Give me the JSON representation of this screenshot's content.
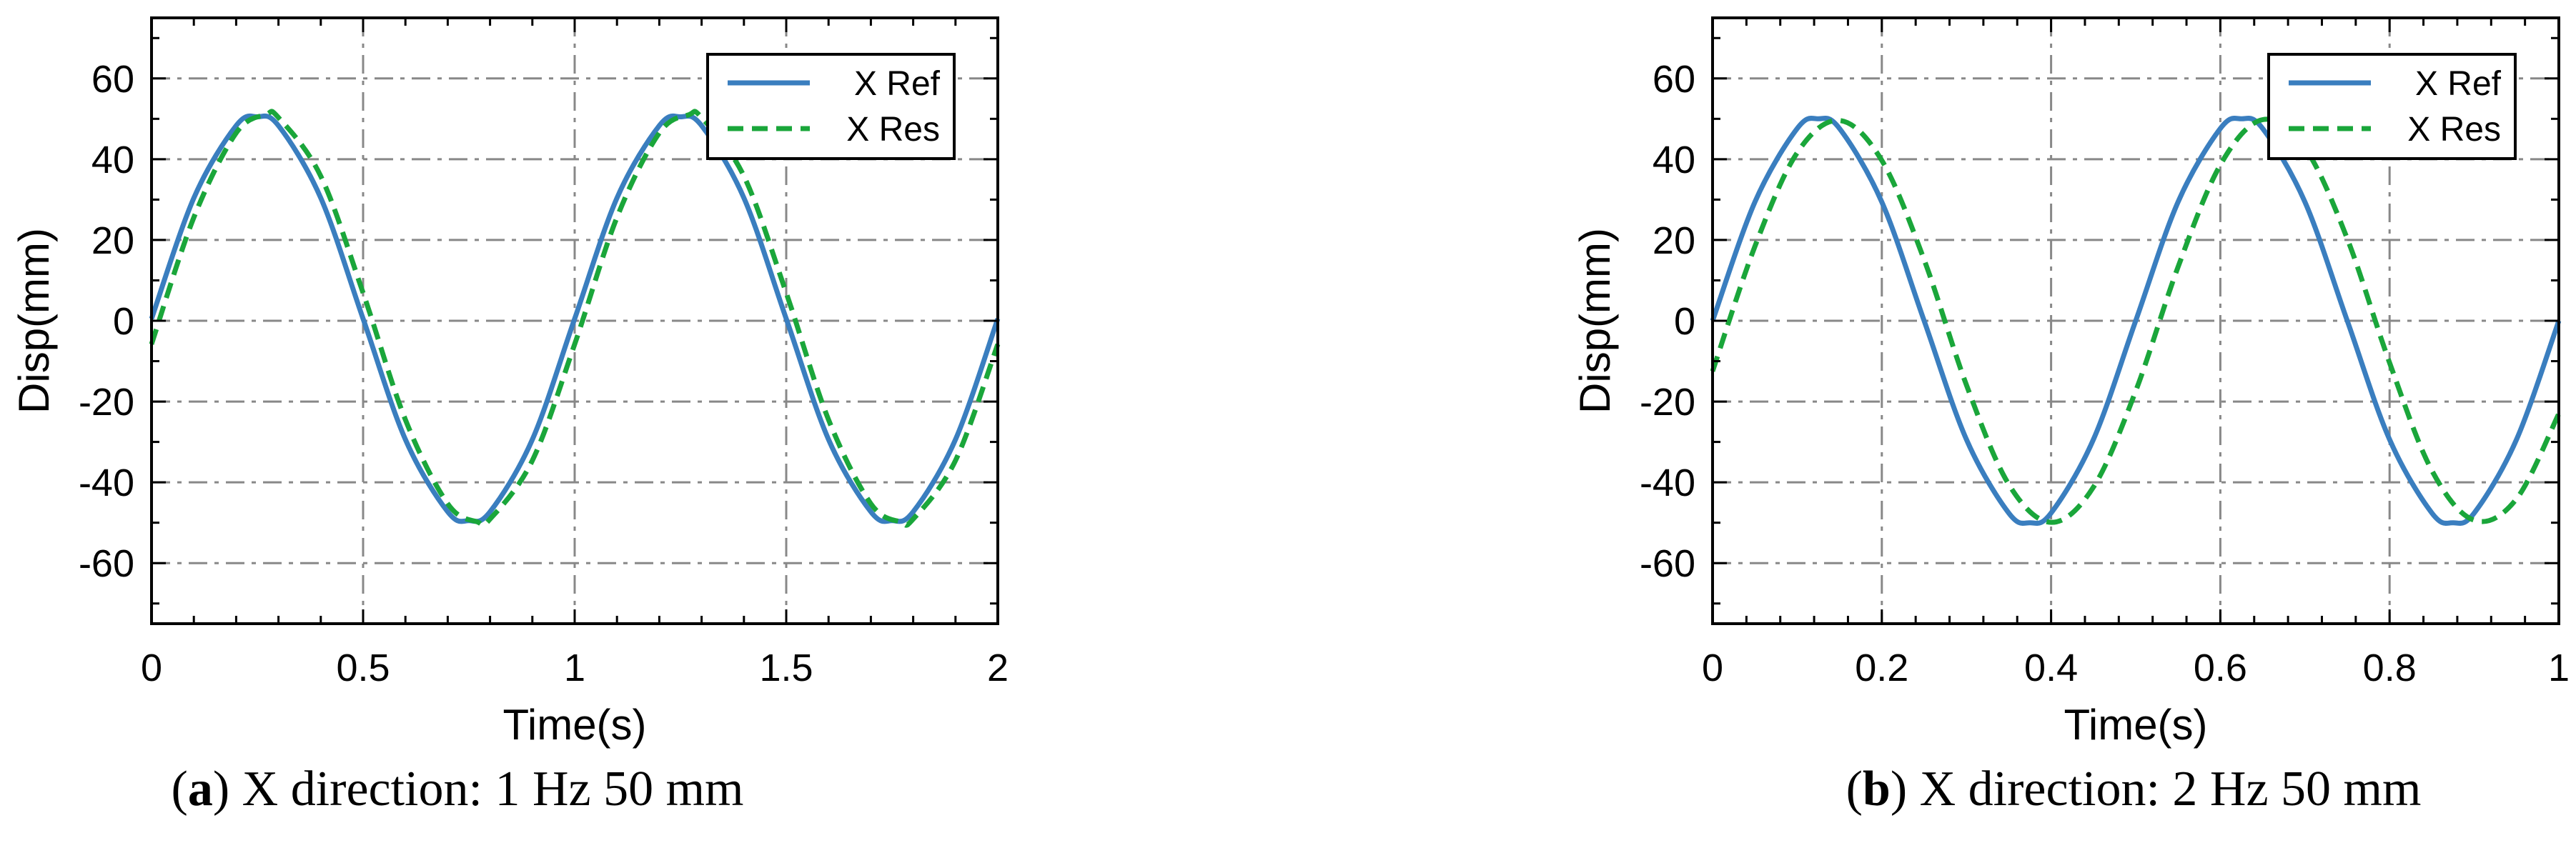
{
  "chart_data": [
    {
      "type": "line",
      "caption_letter": "a",
      "caption_rest": ") X direction: 1 Hz 50 mm",
      "xlabel": "Time(s)",
      "ylabel": "Disp(mm)",
      "xlim": [
        0,
        2
      ],
      "ylim": [
        -75,
        75
      ],
      "xticks": [
        0,
        0.5,
        1,
        1.5,
        2
      ],
      "xtick_labels": [
        "0",
        "0.5",
        "1",
        "1.5",
        "2"
      ],
      "yticks": [
        -60,
        -40,
        -20,
        0,
        20,
        40,
        60
      ],
      "ytick_labels": [
        "-60",
        "-40",
        "-20",
        "0",
        "20",
        "40",
        "60"
      ],
      "grid": true,
      "legend_position": "top-right",
      "series": [
        {
          "name": "X Ref",
          "color": "#3a7ebf",
          "style": "solid",
          "x": [
            0,
            0.1,
            0.2,
            0.25,
            0.3,
            0.4,
            0.5,
            0.6,
            0.7,
            0.75,
            0.8,
            0.9,
            1.0,
            1.1,
            1.2,
            1.25,
            1.3,
            1.4,
            1.5,
            1.6,
            1.7,
            1.75,
            1.8,
            1.9,
            2.0
          ],
          "y": [
            0.5,
            30.4,
            48.3,
            50.5,
            48.3,
            30.4,
            0.5,
            -29.4,
            -47.3,
            -49.5,
            -47.3,
            -29.4,
            0.5,
            30.4,
            48.3,
            50.5,
            48.3,
            30.4,
            0.5,
            -29.4,
            -47.3,
            -49.5,
            -47.3,
            -29.4,
            0.5
          ]
        },
        {
          "name": "X Res",
          "color": "#1aa63a",
          "style": "dashed",
          "x": [
            0,
            0.1,
            0.2,
            0.27,
            0.3,
            0.4,
            0.5,
            0.6,
            0.7,
            0.77,
            0.8,
            0.9,
            1.0,
            1.1,
            1.2,
            1.27,
            1.3,
            1.4,
            1.5,
            1.6,
            1.7,
            1.77,
            1.8,
            1.9,
            2.0
          ],
          "y": [
            -5.8,
            25.6,
            46.5,
            51.0,
            50.3,
            35.8,
            6.9,
            -24.5,
            -45.3,
            -49.8,
            -49.1,
            -34.6,
            -5.8,
            25.6,
            46.5,
            51.0,
            50.3,
            35.8,
            6.9,
            -24.5,
            -45.3,
            -49.8,
            -49.1,
            -34.6,
            -5.8
          ]
        }
      ]
    },
    {
      "type": "line",
      "caption_letter": "b",
      "caption_rest": ") X direction: 2 Hz 50 mm",
      "xlabel": "Time(s)",
      "ylabel": "Disp(mm)",
      "xlim": [
        0,
        1
      ],
      "ylim": [
        -75,
        75
      ],
      "xticks": [
        0,
        0.2,
        0.4,
        0.6,
        0.8,
        1
      ],
      "xtick_labels": [
        "0",
        "0.2",
        "0.4",
        "0.6",
        "0.8",
        "1"
      ],
      "yticks": [
        -60,
        -40,
        -20,
        0,
        20,
        40,
        60
      ],
      "ytick_labels": [
        "-60",
        "-40",
        "-20",
        "0",
        "20",
        "40",
        "60"
      ],
      "grid": true,
      "legend_position": "top-right",
      "series": [
        {
          "name": "X Ref",
          "color": "#3a7ebf",
          "style": "solid",
          "x": [
            0,
            0.05,
            0.1,
            0.125,
            0.15,
            0.2,
            0.25,
            0.3,
            0.35,
            0.375,
            0.4,
            0.45,
            0.5,
            0.55,
            0.6,
            0.625,
            0.65,
            0.7,
            0.75,
            0.8,
            0.85,
            0.875,
            0.9,
            0.95,
            1.0
          ],
          "y": [
            0,
            29.4,
            47.6,
            50.0,
            47.6,
            29.4,
            0,
            -29.4,
            -47.6,
            -50.0,
            -47.6,
            -29.4,
            0,
            29.4,
            47.6,
            50.0,
            47.6,
            29.4,
            0,
            -29.4,
            -47.6,
            -50.0,
            -47.6,
            -29.4,
            0
          ]
        },
        {
          "name": "X Res",
          "color": "#1aa63a",
          "style": "dashed",
          "x": [
            0,
            0.05,
            0.1,
            0.15,
            0.2,
            0.25,
            0.3,
            0.35,
            0.4,
            0.45,
            0.5,
            0.55,
            0.6,
            0.65,
            0.7,
            0.75,
            0.8,
            0.85,
            0.9,
            0.95,
            1.0
          ],
          "y": [
            -12.5,
            18.4,
            41.6,
            49.6,
            39.7,
            15.1,
            -15.9,
            -40.5,
            -49.9,
            -41.2,
            -17.4,
            13.3,
            38.6,
            49.8,
            42.8,
            20.3,
            -10.4,
            -37.1,
            -49.4,
            -44.1,
            -23.0
          ]
        }
      ]
    }
  ]
}
